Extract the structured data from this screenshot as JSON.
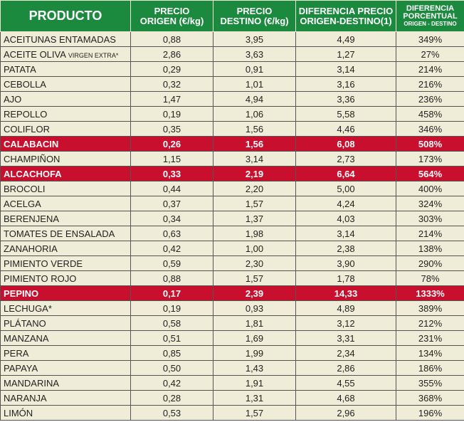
{
  "header": {
    "producto": "PRODUCTO",
    "origen": [
      "PRECIO",
      "ORIGEN (€/kg)"
    ],
    "destino": [
      "PRECIO",
      "DESTINO (€/kg)"
    ],
    "diferencia": [
      "DIFERENCIA PRECIO",
      "ORIGEN-DESTINO(1)"
    ],
    "porcentual": [
      "DIFERENCIA",
      "PORCENTUAL",
      "ORIGEN - DESTINO"
    ]
  },
  "colors": {
    "header": "#1b8a3e",
    "row": "#efedd7",
    "highlight": "#c8102e"
  },
  "rows": [
    {
      "name": "ACEITUNAS ENTAMADAS",
      "origen": "0,88",
      "destino": "3,95",
      "dif": "4,49",
      "pct": "349%"
    },
    {
      "name": "ACEITE OLIVA",
      "name_small": "VIRGEN EXTRA*",
      "origen": "2,86",
      "destino": "3,63",
      "dif": "1,27",
      "pct": "27%"
    },
    {
      "name": "PATATA",
      "origen": "0,29",
      "destino": "0,91",
      "dif": "3,14",
      "pct": "214%"
    },
    {
      "name": "CEBOLLA",
      "origen": "0,32",
      "destino": "1,01",
      "dif": "3,16",
      "pct": "216%"
    },
    {
      "name": "AJO",
      "origen": "1,47",
      "destino": "4,94",
      "dif": "3,36",
      "pct": "236%"
    },
    {
      "name": "REPOLLO",
      "origen": "0,19",
      "destino": "1,06",
      "dif": "5,58",
      "pct": "458%"
    },
    {
      "name": "COLIFLOR",
      "origen": "0,35",
      "destino": "1,56",
      "dif": "4,46",
      "pct": "346%"
    },
    {
      "name": "CALABACIN",
      "origen": "0,26",
      "destino": "1,56",
      "dif": "6,08",
      "pct": "508%",
      "highlight": true
    },
    {
      "name": "CHAMPIÑON",
      "origen": "1,15",
      "destino": "3,14",
      "dif": "2,73",
      "pct": "173%"
    },
    {
      "name": "ALCACHOFA",
      "origen": "0,33",
      "destino": "2,19",
      "dif": "6,64",
      "pct": "564%",
      "highlight": true
    },
    {
      "name": "BROCOLI",
      "origen": "0,44",
      "destino": "2,20",
      "dif": "5,00",
      "pct": "400%"
    },
    {
      "name": "ACELGA",
      "origen": "0,37",
      "destino": "1,57",
      "dif": "4,24",
      "pct": "324%"
    },
    {
      "name": "BERENJENA",
      "origen": "0,34",
      "destino": "1,37",
      "dif": "4,03",
      "pct": "303%"
    },
    {
      "name": "TOMATES DE ENSALADA",
      "origen": "0,63",
      "destino": "1,98",
      "dif": "3,14",
      "pct": "214%"
    },
    {
      "name": "ZANAHORIA",
      "origen": "0,42",
      "destino": "1,00",
      "dif": "2,38",
      "pct": "138%"
    },
    {
      "name": "PIMIENTO VERDE",
      "origen": "0,59",
      "destino": "2,30",
      "dif": "3,90",
      "pct": "290%"
    },
    {
      "name": "PIMIENTO ROJO",
      "origen": "0,88",
      "destino": "1,57",
      "dif": "1,78",
      "pct": "78%"
    },
    {
      "name": "PEPINO",
      "origen": "0,17",
      "destino": "2,39",
      "dif": "14,33",
      "pct": "1333%",
      "highlight": true
    },
    {
      "name": "LECHUGA*",
      "origen": "0,19",
      "destino": "0,93",
      "dif": "4,89",
      "pct": "389%"
    },
    {
      "name": "PLÁTANO",
      "origen": "0,58",
      "destino": "1,81",
      "dif": "3,12",
      "pct": "212%"
    },
    {
      "name": "MANZANA",
      "origen": "0,51",
      "destino": "1,69",
      "dif": "3,31",
      "pct": "231%"
    },
    {
      "name": "PERA",
      "origen": "0,85",
      "destino": "1,99",
      "dif": "2,34",
      "pct": "134%"
    },
    {
      "name": "PAPAYA",
      "origen": "0,50",
      "destino": "1,43",
      "dif": "2,86",
      "pct": "186%"
    },
    {
      "name": "MANDARINA",
      "origen": "0,42",
      "destino": "1,91",
      "dif": "4,55",
      "pct": "355%"
    },
    {
      "name": "NARANJA",
      "origen": "0,28",
      "destino": "1,31",
      "dif": "4,68",
      "pct": "368%"
    },
    {
      "name": "LIMÓN",
      "origen": "0,53",
      "destino": "1,57",
      "dif": "2,96",
      "pct": "196%"
    }
  ]
}
